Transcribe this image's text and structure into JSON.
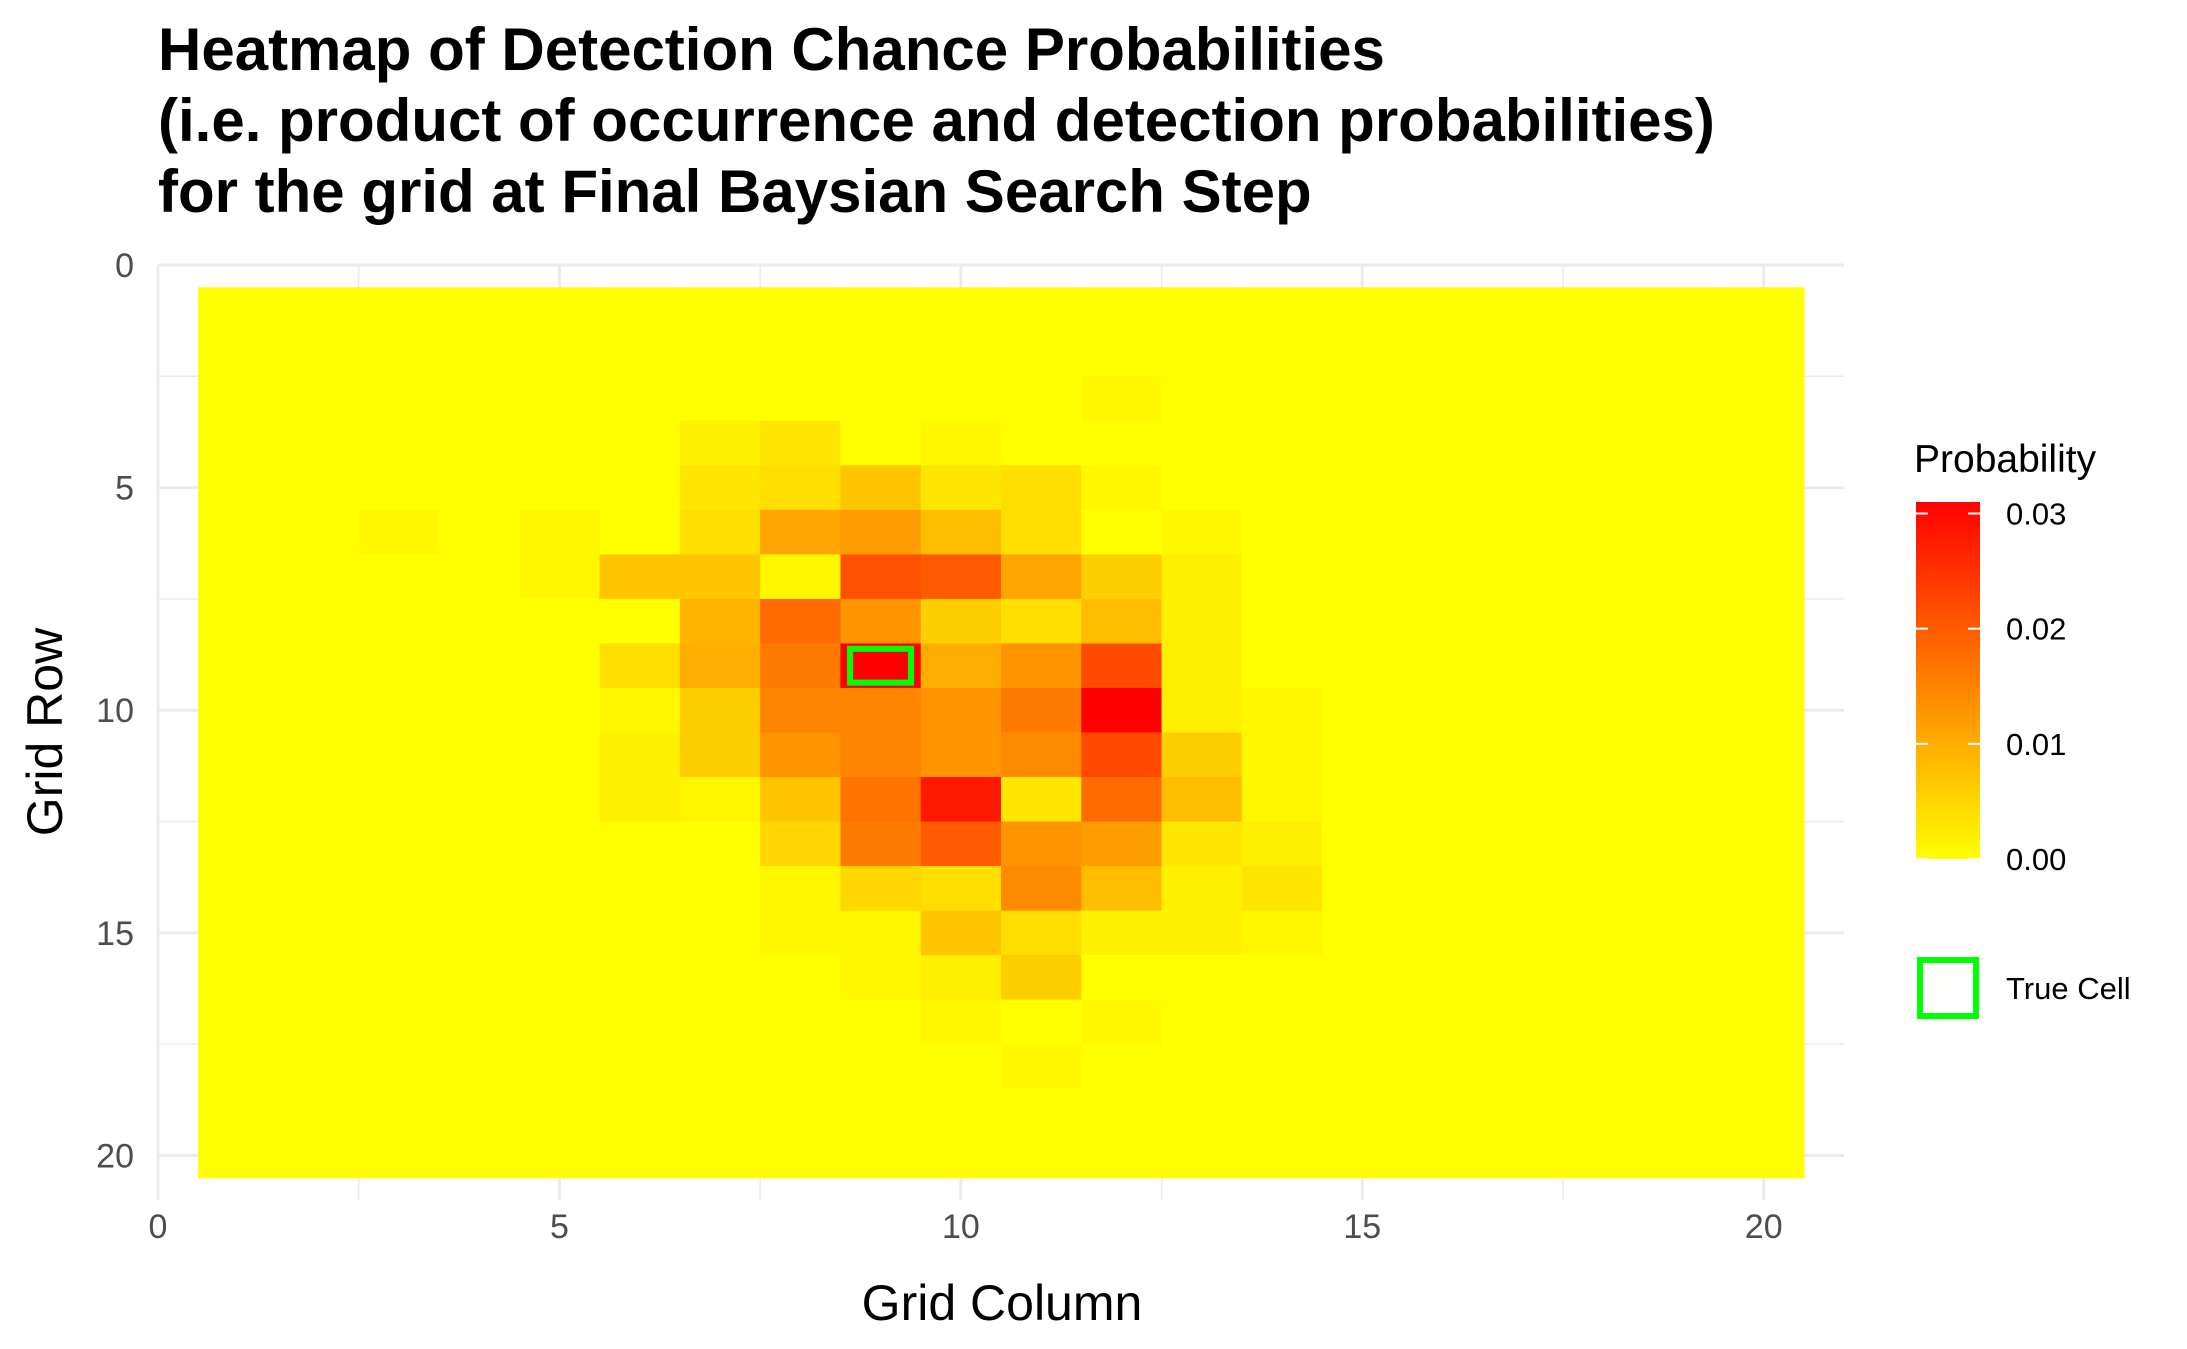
{
  "chart_data": {
    "type": "heatmap",
    "title_lines": [
      "Heatmap of Detection Chance Probabilities",
      "(i.e. product of occurrence and detection probabilities)",
      "for the grid at Final Baysian Search Step"
    ],
    "xlabel": "Grid Column",
    "ylabel": "Grid Row",
    "xlim": [
      0,
      21
    ],
    "ylim": [
      0,
      21
    ],
    "y_reversed": true,
    "x_ticks": [
      0,
      5,
      10,
      15,
      20
    ],
    "y_ticks": [
      0,
      5,
      10,
      15,
      20
    ],
    "x_tick_labels": [
      "0",
      "5",
      "10",
      "15",
      "20"
    ],
    "y_tick_labels": [
      "0",
      "5",
      "10",
      "15",
      "20"
    ],
    "rows": [
      1,
      2,
      3,
      4,
      5,
      6,
      7,
      8,
      9,
      10,
      11,
      12,
      13,
      14,
      15,
      16,
      17,
      18,
      19,
      20
    ],
    "columns": [
      1,
      2,
      3,
      4,
      5,
      6,
      7,
      8,
      9,
      10,
      11,
      12,
      13,
      14,
      15,
      16,
      17,
      18,
      19,
      20
    ],
    "values": [
      [
        0,
        0,
        0,
        0,
        0,
        0,
        0,
        0,
        0,
        0,
        0,
        0,
        0,
        0,
        0,
        0,
        0,
        0,
        0,
        0
      ],
      [
        0,
        0,
        0,
        0,
        0,
        0,
        0,
        0,
        0,
        0,
        0,
        0,
        0,
        0,
        0,
        0,
        0,
        0,
        0,
        0
      ],
      [
        0,
        0,
        0,
        0,
        0,
        0,
        0,
        0,
        0,
        0,
        0,
        0.001,
        0,
        0,
        0,
        0,
        0,
        0,
        0,
        0
      ],
      [
        0,
        0,
        0,
        0,
        0,
        0,
        0.002,
        0.003,
        0,
        0.001,
        0,
        0,
        0,
        0,
        0,
        0,
        0,
        0,
        0,
        0
      ],
      [
        0,
        0,
        0,
        0,
        0,
        0,
        0.003,
        0.004,
        0.007,
        0.003,
        0.004,
        0.001,
        0,
        0,
        0,
        0,
        0,
        0,
        0,
        0
      ],
      [
        0,
        0,
        0.001,
        0,
        0.001,
        0,
        0.004,
        0.011,
        0.012,
        0.008,
        0.004,
        0,
        0.001,
        0,
        0,
        0,
        0,
        0,
        0,
        0
      ],
      [
        0,
        0,
        0,
        0,
        0.001,
        0.007,
        0.007,
        0.001,
        0.021,
        0.02,
        0.011,
        0.006,
        0.002,
        0,
        0,
        0,
        0,
        0,
        0,
        0
      ],
      [
        0,
        0,
        0,
        0,
        0,
        0,
        0.009,
        0.018,
        0.013,
        0.006,
        0.004,
        0.008,
        0.002,
        0,
        0,
        0,
        0,
        0,
        0,
        0
      ],
      [
        0,
        0,
        0,
        0,
        0,
        0.004,
        0.01,
        0.016,
        0.031,
        0.01,
        0.013,
        0.022,
        0.002,
        0,
        0,
        0,
        0,
        0,
        0,
        0
      ],
      [
        0,
        0,
        0,
        0,
        0,
        0.001,
        0.006,
        0.015,
        0.015,
        0.013,
        0.016,
        0.031,
        0.002,
        0.001,
        0,
        0,
        0,
        0,
        0,
        0
      ],
      [
        0,
        0,
        0,
        0,
        0,
        0.002,
        0.006,
        0.013,
        0.015,
        0.013,
        0.014,
        0.022,
        0.006,
        0.001,
        0,
        0,
        0,
        0,
        0,
        0
      ],
      [
        0,
        0,
        0,
        0,
        0,
        0.002,
        0.001,
        0.007,
        0.017,
        0.028,
        0.003,
        0.018,
        0.008,
        0.001,
        0,
        0,
        0,
        0,
        0,
        0
      ],
      [
        0,
        0,
        0,
        0,
        0,
        0,
        0,
        0.005,
        0.016,
        0.02,
        0.013,
        0.012,
        0.003,
        0.002,
        0,
        0,
        0,
        0,
        0,
        0
      ],
      [
        0,
        0,
        0,
        0,
        0,
        0,
        0,
        0.001,
        0.005,
        0.004,
        0.014,
        0.008,
        0.002,
        0.003,
        0,
        0,
        0,
        0,
        0,
        0
      ],
      [
        0,
        0,
        0,
        0,
        0,
        0,
        0,
        0.001,
        0.001,
        0.007,
        0.004,
        0.002,
        0.002,
        0.001,
        0,
        0,
        0,
        0,
        0,
        0
      ],
      [
        0,
        0,
        0,
        0,
        0,
        0,
        0,
        0,
        0.001,
        0.002,
        0.006,
        0,
        0,
        0,
        0,
        0,
        0,
        0,
        0,
        0
      ],
      [
        0,
        0,
        0,
        0,
        0,
        0,
        0,
        0,
        0,
        0.001,
        0,
        0.001,
        0,
        0,
        0,
        0,
        0,
        0,
        0,
        0
      ],
      [
        0,
        0,
        0,
        0,
        0,
        0,
        0,
        0,
        0,
        0,
        0.001,
        0,
        0,
        0,
        0,
        0,
        0,
        0,
        0,
        0
      ],
      [
        0,
        0,
        0,
        0,
        0,
        0,
        0,
        0,
        0,
        0,
        0,
        0,
        0,
        0,
        0,
        0,
        0,
        0,
        0,
        0
      ],
      [
        0,
        0,
        0,
        0,
        0,
        0,
        0,
        0,
        0,
        0,
        0,
        0,
        0,
        0,
        0,
        0,
        0,
        0,
        0,
        0
      ]
    ],
    "colorscale": {
      "low_color": "#ffff00",
      "high_color": "#ff0000",
      "min": 0,
      "max": 0.031
    },
    "legend": {
      "title": "Probability",
      "placement": "right",
      "ticks": [
        0.0,
        0.01,
        0.02,
        0.03
      ],
      "tick_labels": [
        "0.00",
        "0.01",
        "0.02",
        "0.03"
      ],
      "marker_label": "True Cell",
      "marker_color": "#00ff00"
    },
    "true_cell": {
      "row": 9,
      "column": 9
    },
    "grid": true
  }
}
